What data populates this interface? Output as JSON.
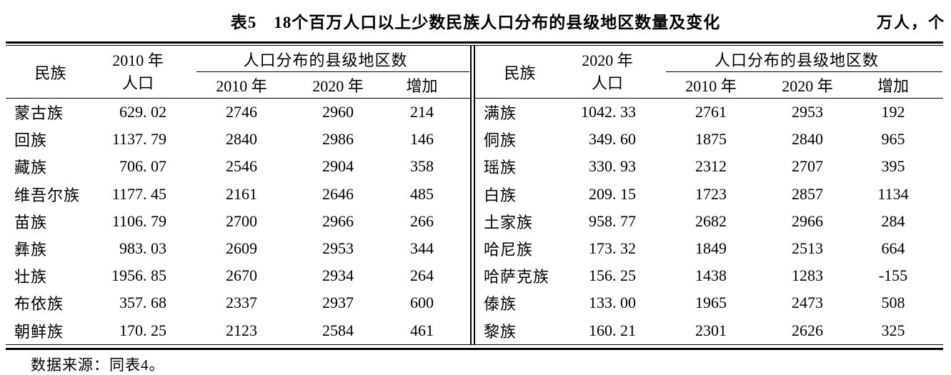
{
  "title": "表5　18个百万人口以上少数民族人口分布的县级地区数量及变化",
  "unit": "万人，个",
  "footer": "数据来源：同表4。",
  "panels": [
    {
      "col_ethnic": "民族",
      "pop_header_line1": "2010 年",
      "pop_header_line2": "人口",
      "group_header": "人口分布的县级地区数",
      "sub_headers": [
        "2010 年",
        "2020 年",
        "增加"
      ],
      "rows": [
        {
          "ethnic": "蒙古族",
          "pop": "629. 02",
          "c2010": "2746",
          "c2020": "2960",
          "inc": "214"
        },
        {
          "ethnic": "回族",
          "pop": "1137. 79",
          "c2010": "2840",
          "c2020": "2986",
          "inc": "146"
        },
        {
          "ethnic": "藏族",
          "pop": "706. 07",
          "c2010": "2546",
          "c2020": "2904",
          "inc": "358"
        },
        {
          "ethnic": "维吾尔族",
          "pop": "1177. 45",
          "c2010": "2161",
          "c2020": "2646",
          "inc": "485"
        },
        {
          "ethnic": "苗族",
          "pop": "1106. 79",
          "c2010": "2700",
          "c2020": "2966",
          "inc": "266"
        },
        {
          "ethnic": "彝族",
          "pop": "983. 03",
          "c2010": "2609",
          "c2020": "2953",
          "inc": "344"
        },
        {
          "ethnic": "壮族",
          "pop": "1956. 85",
          "c2010": "2670",
          "c2020": "2934",
          "inc": "264"
        },
        {
          "ethnic": "布依族",
          "pop": "357. 68",
          "c2010": "2337",
          "c2020": "2937",
          "inc": "600"
        },
        {
          "ethnic": "朝鲜族",
          "pop": "170. 25",
          "c2010": "2123",
          "c2020": "2584",
          "inc": "461"
        }
      ]
    },
    {
      "col_ethnic": "民族",
      "pop_header_line1": "2020 年",
      "pop_header_line2": "人口",
      "group_header": "人口分布的县级地区数",
      "sub_headers": [
        "2010 年",
        "2020 年",
        "增加"
      ],
      "rows": [
        {
          "ethnic": "满族",
          "pop": "1042. 33",
          "c2010": "2761",
          "c2020": "2953",
          "inc": "192"
        },
        {
          "ethnic": "侗族",
          "pop": "349. 60",
          "c2010": "1875",
          "c2020": "2840",
          "inc": "965"
        },
        {
          "ethnic": "瑶族",
          "pop": "330. 93",
          "c2010": "2312",
          "c2020": "2707",
          "inc": "395"
        },
        {
          "ethnic": "白族",
          "pop": "209. 15",
          "c2010": "1723",
          "c2020": "2857",
          "inc": "1134"
        },
        {
          "ethnic": "土家族",
          "pop": "958. 77",
          "c2010": "2682",
          "c2020": "2966",
          "inc": "284"
        },
        {
          "ethnic": "哈尼族",
          "pop": "173. 32",
          "c2010": "1849",
          "c2020": "2513",
          "inc": "664"
        },
        {
          "ethnic": "哈萨克族",
          "pop": "156. 25",
          "c2010": "1438",
          "c2020": "1283",
          "inc": "-155"
        },
        {
          "ethnic": "傣族",
          "pop": "133. 00",
          "c2010": "1965",
          "c2020": "2473",
          "inc": "508"
        },
        {
          "ethnic": "黎族",
          "pop": "160. 21",
          "c2010": "2301",
          "c2020": "2626",
          "inc": "325"
        }
      ]
    }
  ]
}
